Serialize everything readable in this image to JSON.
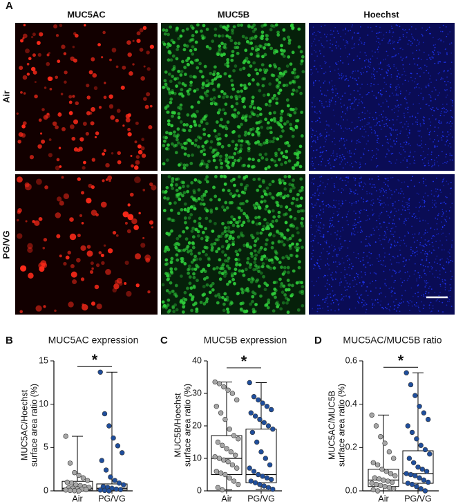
{
  "figure_a": {
    "label": "A",
    "columns": [
      "MUC5AC",
      "MUC5B",
      "Hoechst"
    ],
    "rows": [
      "Air",
      "PG/VG"
    ]
  },
  "chart_data": [
    {
      "type": "box",
      "panel": "B",
      "title": "MUC5AC expression",
      "ylabel": [
        "MUC5AC/Hoechst",
        "surface area ratio (%)"
      ],
      "categories": [
        "Air",
        "PG/VG"
      ],
      "ylim": [
        0,
        15
      ],
      "yticks": [
        0,
        5,
        10,
        15
      ],
      "annotation": "*",
      "boxes": [
        {
          "color": "#a6a6a6",
          "min": 0,
          "q1": 0.1,
          "median": 0.3,
          "q3": 1.1,
          "max": 6.3,
          "points": [
            6.3,
            3.2,
            2.1,
            1.8,
            1.5,
            1.2,
            1.0,
            0.9,
            0.7,
            0.6,
            0.5,
            0.4,
            0.35,
            0.3,
            0.25,
            0.2,
            0.15,
            0.1,
            0.05,
            0.02,
            0
          ]
        },
        {
          "color": "#1f4e9c",
          "min": 0,
          "q1": 0.1,
          "median": 0.3,
          "q3": 0.8,
          "max": 13.7,
          "points": [
            13.7,
            8.9,
            7.5,
            6.1,
            5.2,
            4.4,
            3.5,
            2.4,
            1.6,
            1.2,
            0.9,
            0.7,
            0.5,
            0.4,
            0.3,
            0.2,
            0.15,
            0.1,
            0.05,
            0
          ]
        }
      ]
    },
    {
      "type": "box",
      "panel": "C",
      "title": "MUC5B expression",
      "ylabel": [
        "MUC5B/Hoechst",
        "surface area ratio (%)"
      ],
      "categories": [
        "Air",
        "PG/VG"
      ],
      "ylim": [
        0,
        40
      ],
      "yticks": [
        0,
        10,
        20,
        30,
        40
      ],
      "annotation": "*",
      "boxes": [
        {
          "color": "#a6a6a6",
          "min": 0.3,
          "q1": 5,
          "median": 10,
          "q3": 17,
          "max": 33.5,
          "points": [
            33.5,
            33,
            32,
            31,
            30,
            28,
            26,
            24,
            22,
            19,
            17,
            16,
            15,
            14,
            13,
            12,
            11,
            10.5,
            10,
            9.5,
            9,
            8,
            7,
            6,
            5.5,
            5,
            4,
            3,
            2,
            1,
            0.3
          ]
        },
        {
          "color": "#1f4e9c",
          "min": 0.5,
          "q1": 2.5,
          "median": 5,
          "q3": 19,
          "max": 33.3,
          "points": [
            33.3,
            29,
            28,
            27,
            26,
            25,
            24,
            23,
            22,
            21,
            20,
            19,
            18,
            15,
            12,
            10,
            8,
            7,
            6,
            5,
            4.5,
            4,
            3.5,
            3,
            2.5,
            2,
            1.5,
            1,
            0.5
          ]
        }
      ]
    },
    {
      "type": "box",
      "panel": "D",
      "title": "MUC5AC/MUC5B ratio",
      "ylabel": [
        "MUC5AC/MUC5B",
        "surface area ratio (%)"
      ],
      "categories": [
        "Air",
        "PG/VG"
      ],
      "ylim": [
        0,
        0.6
      ],
      "yticks": [
        {
          "value": 0,
          "label": "0.0"
        },
        0.2,
        0.4,
        0.6
      ],
      "annotation": "*",
      "boxes": [
        {
          "color": "#a6a6a6",
          "min": 0,
          "q1": 0.02,
          "median": 0.05,
          "q3": 0.1,
          "max": 0.35,
          "points": [
            0.35,
            0.3,
            0.25,
            0.22,
            0.18,
            0.15,
            0.13,
            0.12,
            0.1,
            0.09,
            0.08,
            0.07,
            0.06,
            0.055,
            0.05,
            0.045,
            0.04,
            0.035,
            0.03,
            0.025,
            0.02,
            0.015,
            0.01,
            0.005,
            0
          ]
        },
        {
          "color": "#1f4e9c",
          "min": 0,
          "q1": 0.035,
          "median": 0.08,
          "q3": 0.185,
          "max": 0.545,
          "points": [
            0.545,
            0.49,
            0.44,
            0.39,
            0.36,
            0.33,
            0.3,
            0.27,
            0.24,
            0.21,
            0.19,
            0.17,
            0.15,
            0.13,
            0.11,
            0.1,
            0.09,
            0.08,
            0.075,
            0.07,
            0.06,
            0.05,
            0.04,
            0.035,
            0.03,
            0.02,
            0.01,
            0
          ]
        }
      ]
    }
  ]
}
